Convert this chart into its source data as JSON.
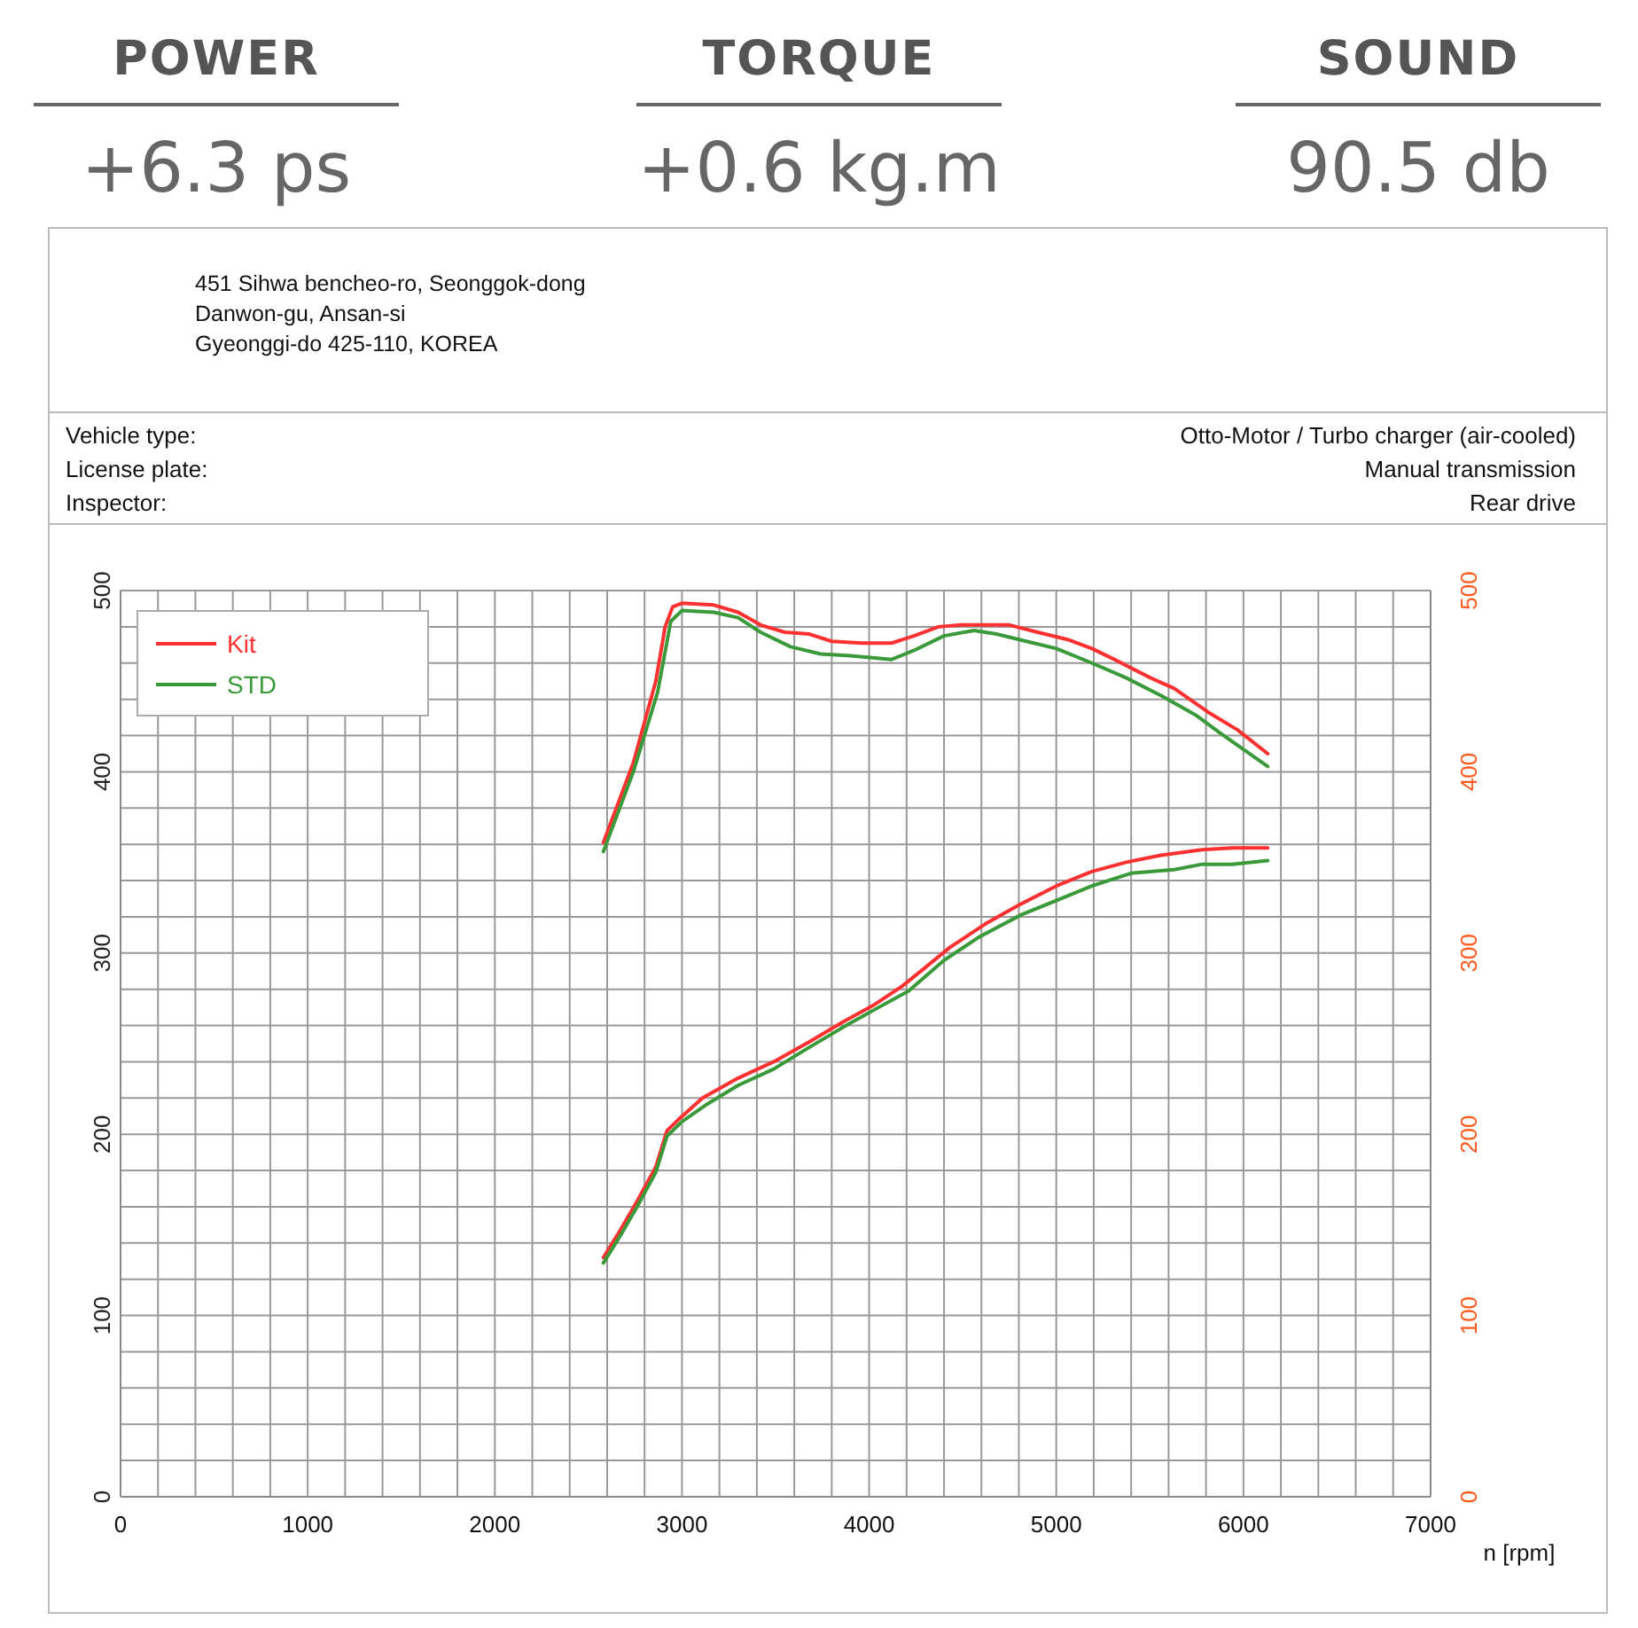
{
  "chart_data": {
    "type": "line",
    "annotations": [
      "POWER",
      "+6.3 ps",
      "TORQUE",
      "+0.6 kg.m",
      "SOUND",
      "90.5 db",
      "451 Sihwa bencheo-ro, Seonggok-dong",
      "Danwon-gu, Ansan-si",
      "Gyeonggi-do 425-110, KOREA",
      "Vehicle type:",
      "License plate:",
      "Inspector:",
      "Otto-Motor / Turbo charger (air-cooled)",
      "Manual transmission",
      "Rear drive"
    ],
    "xlabel": "n [rpm]",
    "xlim": [
      0,
      7000
    ],
    "xticks": [
      0,
      {
        "value": 200,
        "label": null
      },
      {
        "value": 400,
        "label": null
      },
      {
        "value": 600,
        "label": null
      },
      {
        "value": 800,
        "label": null
      },
      1000,
      {
        "value": 1200,
        "label": null
      },
      {
        "value": 1400,
        "label": null
      },
      {
        "value": 1600,
        "label": null
      },
      {
        "value": 1800,
        "label": null
      },
      2000,
      {
        "value": 2200,
        "label": null
      },
      {
        "value": 2400,
        "label": null
      },
      {
        "value": 2600,
        "label": null
      },
      {
        "value": 2800,
        "label": null
      },
      3000,
      {
        "value": 3200,
        "label": null
      },
      {
        "value": 3400,
        "label": null
      },
      {
        "value": 3600,
        "label": null
      },
      {
        "value": 3800,
        "label": null
      },
      4000,
      {
        "value": 4200,
        "label": null
      },
      {
        "value": 4400,
        "label": null
      },
      {
        "value": 4600,
        "label": null
      },
      {
        "value": 4800,
        "label": null
      },
      5000,
      {
        "value": 5200,
        "label": null
      },
      {
        "value": 5400,
        "label": null
      },
      {
        "value": 5600,
        "label": null
      },
      {
        "value": 5800,
        "label": null
      },
      6000,
      {
        "value": 6200,
        "label": null
      },
      {
        "value": 6400,
        "label": null
      },
      {
        "value": 6600,
        "label": null
      },
      {
        "value": 6800,
        "label": null
      },
      7000
    ],
    "ylim": [
      0,
      500
    ],
    "yticks": [
      0,
      {
        "value": 20,
        "label": null
      },
      {
        "value": 40,
        "label": null
      },
      {
        "value": 60,
        "label": null
      },
      {
        "value": 80,
        "label": null
      },
      100,
      {
        "value": 120,
        "label": null
      },
      {
        "value": 140,
        "label": null
      },
      {
        "value": 160,
        "label": null
      },
      {
        "value": 180,
        "label": null
      },
      200,
      {
        "value": 220,
        "label": null
      },
      {
        "value": 240,
        "label": null
      },
      {
        "value": 260,
        "label": null
      },
      {
        "value": 280,
        "label": null
      },
      300,
      {
        "value": 320,
        "label": null
      },
      {
        "value": 340,
        "label": null
      },
      {
        "value": 360,
        "label": null
      },
      {
        "value": 380,
        "label": null
      },
      400,
      {
        "value": 420,
        "label": null
      },
      {
        "value": 440,
        "label": null
      },
      {
        "value": 460,
        "label": null
      },
      {
        "value": 480,
        "label": null
      },
      500
    ],
    "y2lim": [
      0,
      500
    ],
    "y2ticks": [
      0,
      100,
      200,
      300,
      400,
      500
    ],
    "grid": true,
    "legend": "top left",
    "line_style": "solid",
    "series": [
      {
        "name": "Kit",
        "color": "#ff3030",
        "x": [
          2580,
          2740,
          2860,
          2910,
          2950,
          3000,
          3170,
          3300,
          3420,
          3550,
          3680,
          3800,
          3960,
          4120,
          4240,
          4370,
          4490,
          4750,
          4900,
          5060,
          5190,
          5310,
          5500,
          5630,
          5810,
          5970,
          6130
        ],
        "values": [
          361,
          405,
          450,
          480,
          491,
          493,
          492,
          488,
          481,
          477,
          476,
          472,
          471,
          471,
          475,
          480,
          481,
          481,
          477,
          473,
          468,
          462,
          452,
          446,
          433,
          423,
          410
        ]
      },
      {
        "name": "STD",
        "color": "#3a9a3a",
        "x": [
          2580,
          2740,
          2870,
          2940,
          3000,
          3170,
          3300,
          3420,
          3580,
          3740,
          3900,
          4120,
          4240,
          4400,
          4560,
          4680,
          4840,
          5000,
          5190,
          5370,
          5560,
          5750,
          5880,
          6130
        ],
        "values": [
          356,
          400,
          444,
          483,
          489,
          488,
          485,
          477,
          469,
          465,
          464,
          462,
          467,
          475,
          478,
          476,
          472,
          468,
          460,
          452,
          442,
          431,
          421,
          403
        ]
      },
      {
        "color": "#ff3030",
        "x": [
          2580,
          2670,
          2760,
          2860,
          2920,
          2980,
          3110,
          3300,
          3490,
          3680,
          3860,
          4020,
          4180,
          4300,
          4430,
          4620,
          4810,
          5000,
          5190,
          5370,
          5560,
          5780,
          5940,
          6130
        ],
        "values": [
          132,
          147,
          163,
          182,
          202,
          208,
          220,
          231,
          240,
          251,
          262,
          271,
          282,
          292,
          303,
          316,
          327,
          337,
          345,
          350,
          354,
          357,
          358,
          358
        ]
      },
      {
        "color": "#3a9a3a",
        "x": [
          2580,
          2670,
          2760,
          2860,
          2920,
          3000,
          3140,
          3300,
          3490,
          3680,
          3860,
          4050,
          4210,
          4400,
          4590,
          4810,
          5000,
          5190,
          5400,
          5630,
          5780,
          5940,
          6130
        ],
        "values": [
          129,
          144,
          160,
          179,
          199,
          207,
          217,
          227,
          236,
          248,
          259,
          270,
          279,
          296,
          309,
          321,
          329,
          337,
          344,
          346,
          349,
          349,
          351
        ]
      }
    ]
  }
}
